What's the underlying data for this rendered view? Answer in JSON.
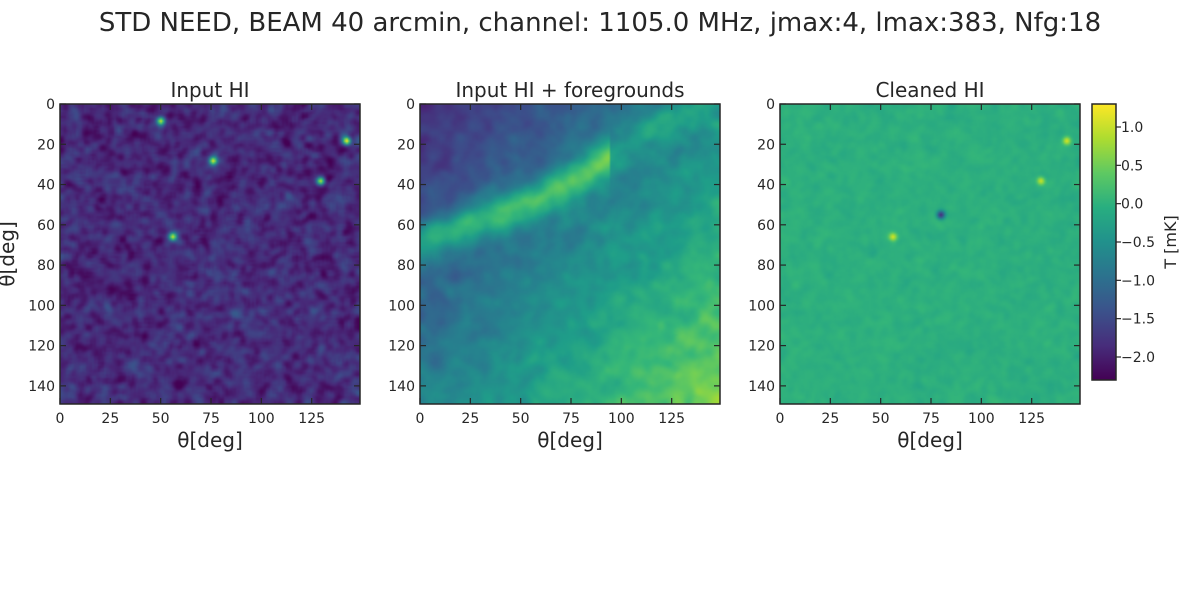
{
  "figure": {
    "title": "STD NEED, BEAM 40 arcmin, channel: 1105.0 MHz, jmax:4, lmax:383, Nfg:18"
  },
  "chart_data": [
    {
      "type": "heatmap",
      "title": "Input HI",
      "xlabel": "θ[deg]",
      "ylabel": "θ[deg]",
      "xlim": [
        0,
        149
      ],
      "ylim": [
        149,
        0
      ],
      "x_ticks": [
        "0",
        "25",
        "50",
        "75",
        "100",
        "125"
      ],
      "y_ticks": [
        "0",
        "20",
        "40",
        "60",
        "80",
        "100",
        "120",
        "140"
      ],
      "colormap": "viridis",
      "value_range": [
        -2.3,
        -1.2
      ],
      "bright_spots": [
        [
          56,
          66
        ],
        [
          143,
          18
        ],
        [
          130,
          38
        ],
        [
          50,
          8
        ],
        [
          76,
          28
        ]
      ]
    },
    {
      "type": "heatmap",
      "title": "Input HI + foregrounds",
      "xlabel": "θ[deg]",
      "ylabel": "",
      "xlim": [
        0,
        149
      ],
      "ylim": [
        149,
        0
      ],
      "x_ticks": [
        "0",
        "25",
        "50",
        "75",
        "100",
        "125"
      ],
      "y_ticks": [
        "0",
        "20",
        "40",
        "60",
        "80",
        "100",
        "120",
        "140"
      ],
      "colormap": "viridis",
      "value_range": [
        -2.3,
        1.3
      ]
    },
    {
      "type": "heatmap",
      "title": "Cleaned HI",
      "xlabel": "θ[deg]",
      "ylabel": "",
      "xlim": [
        0,
        149
      ],
      "ylim": [
        149,
        0
      ],
      "x_ticks": [
        "0",
        "25",
        "50",
        "75",
        "100",
        "125"
      ],
      "y_ticks": [
        "0",
        "20",
        "40",
        "60",
        "80",
        "100",
        "120",
        "140"
      ],
      "colormap": "viridis",
      "value_range": [
        -0.2,
        0.4
      ],
      "bright_spots": [
        [
          56,
          66
        ],
        [
          143,
          18
        ],
        [
          130,
          38
        ]
      ],
      "dark_spots": [
        [
          80,
          55
        ]
      ]
    }
  ],
  "colorbar": {
    "label": "T [mK]",
    "ticks": [
      1.0,
      0.5,
      0.0,
      -0.5,
      -1.0,
      -1.5,
      -2.0
    ],
    "tick_labels": [
      "1.0",
      "0.5",
      "0.0",
      "−0.5",
      "−1.0",
      "−1.5",
      "−2.0"
    ],
    "range": [
      -2.3,
      1.3
    ],
    "colormap": "viridis"
  }
}
